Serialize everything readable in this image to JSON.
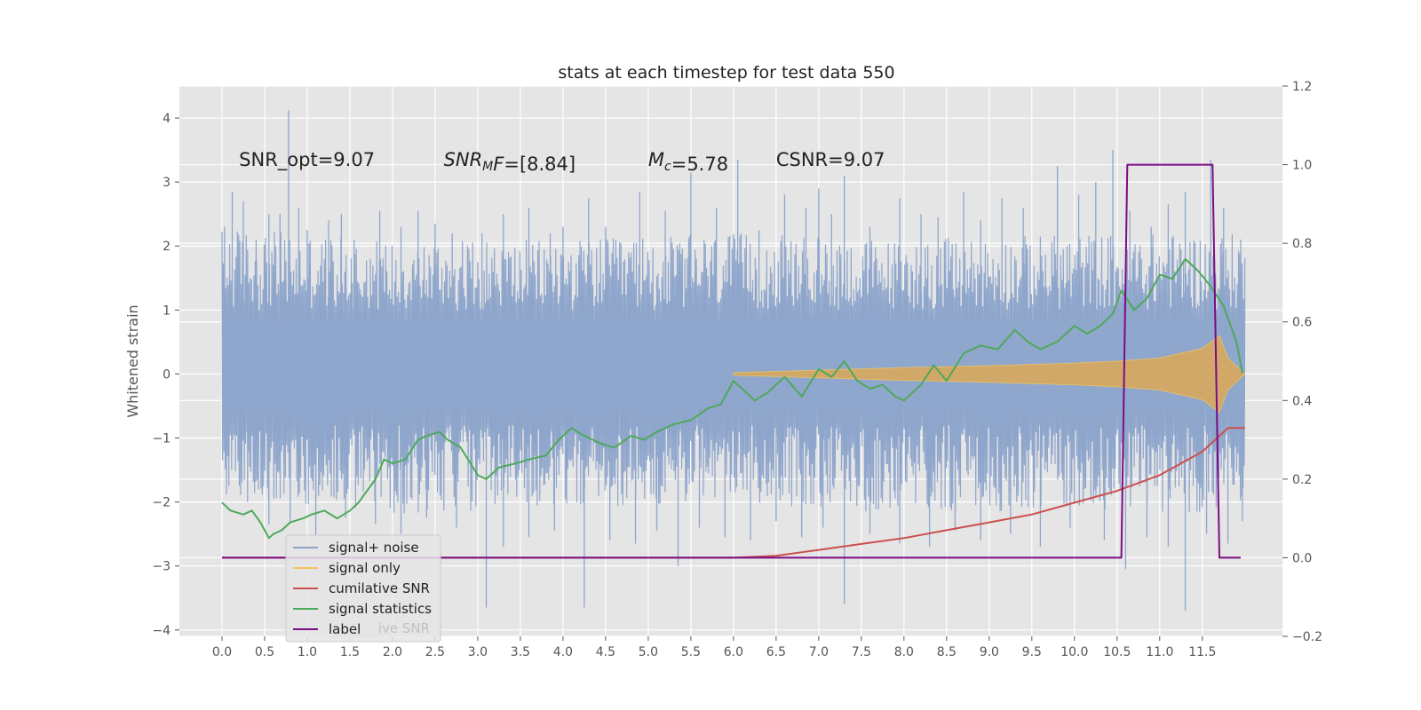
{
  "chart_data": {
    "type": "line",
    "title": "stats at each timestep for test data 550",
    "ylabel": "Whitened strain",
    "xlabel": "",
    "xlim": [
      -0.5,
      12.44
    ],
    "ylim": [
      -4.1,
      4.5
    ],
    "y2lim": [
      -0.2,
      1.2
    ],
    "grid": true,
    "background": "#e5e5e5",
    "x_ticks": [
      0.0,
      0.5,
      1.0,
      1.5,
      2.0,
      2.5,
      3.0,
      3.5,
      4.0,
      4.5,
      5.0,
      5.5,
      6.0,
      6.5,
      7.0,
      7.5,
      8.0,
      8.5,
      9.0,
      9.5,
      10.0,
      10.5,
      11.0,
      11.5
    ],
    "x_tick_labels": [
      "0.0",
      "0.5",
      "1.0",
      "1.5",
      "2.0",
      "2.5",
      "3.0",
      "3.5",
      "4.0",
      "4.5",
      "5.0",
      "5.5",
      "6.0",
      "6.5",
      "7.0",
      "7.5",
      "8.0",
      "8.5",
      "9.0",
      "9.5",
      "10.0",
      "10.5",
      "11.0",
      "11.5"
    ],
    "y_ticks": [
      -4,
      -3,
      -2,
      -1,
      0,
      1,
      2,
      3,
      4
    ],
    "y_tick_labels": [
      "−4",
      "−3",
      "−2",
      "−1",
      "0",
      "1",
      "2",
      "3",
      "4"
    ],
    "y2_ticks": [
      -0.2,
      0.0,
      0.2,
      0.4,
      0.6,
      0.8,
      1.0,
      1.2
    ],
    "y2_tick_labels": [
      "−0.2",
      "0.0",
      "0.2",
      "0.4",
      "0.6",
      "0.8",
      "1.0",
      "1.2"
    ],
    "annotations": [
      {
        "id": "snr-opt",
        "x": 0.2,
        "y": 3.25,
        "parts": [
          {
            "t": "SNR_opt=9.07"
          }
        ]
      },
      {
        "id": "snr-mf",
        "x": 2.6,
        "y": 3.25,
        "parts": [
          {
            "t": "SNR",
            "i": true
          },
          {
            "t": "M",
            "i": true,
            "sub": true
          },
          {
            "t": "F",
            "i": true
          },
          {
            "t": "=[8.84]"
          }
        ]
      },
      {
        "id": "mc",
        "x": 5.0,
        "y": 3.25,
        "parts": [
          {
            "t": "M",
            "i": true
          },
          {
            "t": "c",
            "i": true,
            "sub": true
          },
          {
            "t": "=5.78"
          }
        ]
      },
      {
        "id": "csnr",
        "x": 6.5,
        "y": 3.25,
        "parts": [
          {
            "t": "CSNR=9.07"
          }
        ]
      }
    ],
    "legend": {
      "placement": "lower-left",
      "entries": [
        {
          "label": "signal+ noise",
          "color": "#8fa6cc"
        },
        {
          "label": "signal only",
          "color": "#f4c55a"
        },
        {
          "label": "cumilative SNR",
          "color": "#cc4f4f"
        },
        {
          "label": "signal statistics",
          "color": "#4ea85a"
        },
        {
          "label": "label",
          "color": "#7b0c85"
        }
      ],
      "hidden_entry": "cumilative SNR"
    },
    "series": [
      {
        "name": "signal+ noise",
        "axis": "left",
        "color": "#8fa6cc",
        "x_range": [
          0.0,
          12.0
        ],
        "envelope": {
          "t": [
            0,
            2,
            4,
            6,
            8,
            10,
            12
          ],
          "upper": [
            2.3,
            2.1,
            2.1,
            2.2,
            2.1,
            2.2,
            2.2
          ],
          "lower": [
            -1.9,
            -2.2,
            -2.1,
            -2.0,
            -2.2,
            -2.1,
            -2.2
          ]
        },
        "spikes": [
          {
            "x": 0.03,
            "y": 2.3
          },
          {
            "x": 0.12,
            "y": 2.85
          },
          {
            "x": 0.25,
            "y": 2.7
          },
          {
            "x": 0.4,
            "y": 2.1
          },
          {
            "x": 0.55,
            "y": 2.5
          },
          {
            "x": 0.68,
            "y": 2.5
          },
          {
            "x": 0.78,
            "y": 4.12
          },
          {
            "x": 0.9,
            "y": 2.6
          },
          {
            "x": 1.0,
            "y": 2.25
          },
          {
            "x": 1.25,
            "y": 2.4
          },
          {
            "x": 1.4,
            "y": 2.5
          },
          {
            "x": 1.55,
            "y": 2.1
          },
          {
            "x": 1.85,
            "y": 2.55
          },
          {
            "x": 2.1,
            "y": 2.3
          },
          {
            "x": 2.3,
            "y": 2.55
          },
          {
            "x": 2.5,
            "y": 2.35
          },
          {
            "x": 2.7,
            "y": 2.2
          },
          {
            "x": 3.05,
            "y": 2.2
          },
          {
            "x": 3.3,
            "y": 2.5
          },
          {
            "x": 3.6,
            "y": 2.6
          },
          {
            "x": 3.85,
            "y": 2.2
          },
          {
            "x": 4.0,
            "y": 2.3
          },
          {
            "x": 4.3,
            "y": 2.75
          },
          {
            "x": 4.5,
            "y": 2.3
          },
          {
            "x": 4.9,
            "y": 2.85
          },
          {
            "x": 5.2,
            "y": 2.55
          },
          {
            "x": 5.5,
            "y": 3.15
          },
          {
            "x": 5.8,
            "y": 2.6
          },
          {
            "x": 6.05,
            "y": 3.35
          },
          {
            "x": 6.3,
            "y": 2.25
          },
          {
            "x": 6.6,
            "y": 2.8
          },
          {
            "x": 6.85,
            "y": 2.6
          },
          {
            "x": 7.0,
            "y": 2.9
          },
          {
            "x": 7.15,
            "y": 2.5
          },
          {
            "x": 7.3,
            "y": 3.1
          },
          {
            "x": 7.6,
            "y": 2.3
          },
          {
            "x": 7.95,
            "y": 2.75
          },
          {
            "x": 8.2,
            "y": 2.5
          },
          {
            "x": 8.4,
            "y": 2.45
          },
          {
            "x": 8.7,
            "y": 2.85
          },
          {
            "x": 8.9,
            "y": 2.4
          },
          {
            "x": 9.15,
            "y": 2.75
          },
          {
            "x": 9.4,
            "y": 2.6
          },
          {
            "x": 9.8,
            "y": 3.25
          },
          {
            "x": 10.05,
            "y": 2.8
          },
          {
            "x": 10.25,
            "y": 3.0
          },
          {
            "x": 10.45,
            "y": 3.5
          },
          {
            "x": 10.65,
            "y": 2.55
          },
          {
            "x": 10.9,
            "y": 2.3
          },
          {
            "x": 11.1,
            "y": 2.65
          },
          {
            "x": 11.3,
            "y": 2.85
          },
          {
            "x": 11.6,
            "y": 3.35
          },
          {
            "x": 11.75,
            "y": 2.6
          },
          {
            "x": 11.95,
            "y": 2.1
          },
          {
            "x": 0.08,
            "y": -1.75
          },
          {
            "x": 0.3,
            "y": -2.0
          },
          {
            "x": 0.55,
            "y": -2.35
          },
          {
            "x": 0.8,
            "y": -2.3
          },
          {
            "x": 1.1,
            "y": -2.55
          },
          {
            "x": 1.45,
            "y": -2.25
          },
          {
            "x": 1.8,
            "y": -2.35
          },
          {
            "x": 2.1,
            "y": -2.5
          },
          {
            "x": 2.4,
            "y": -2.25
          },
          {
            "x": 2.75,
            "y": -2.4
          },
          {
            "x": 3.1,
            "y": -3.65
          },
          {
            "x": 3.3,
            "y": -2.7
          },
          {
            "x": 3.6,
            "y": -2.55
          },
          {
            "x": 3.9,
            "y": -2.45
          },
          {
            "x": 4.25,
            "y": -3.65
          },
          {
            "x": 4.55,
            "y": -2.6
          },
          {
            "x": 4.85,
            "y": -2.65
          },
          {
            "x": 5.1,
            "y": -2.45
          },
          {
            "x": 5.35,
            "y": -3.0
          },
          {
            "x": 5.6,
            "y": -2.4
          },
          {
            "x": 5.9,
            "y": -2.55
          },
          {
            "x": 6.2,
            "y": -2.6
          },
          {
            "x": 6.5,
            "y": -2.3
          },
          {
            "x": 6.8,
            "y": -2.55
          },
          {
            "x": 7.05,
            "y": -2.4
          },
          {
            "x": 7.3,
            "y": -3.6
          },
          {
            "x": 7.6,
            "y": -2.5
          },
          {
            "x": 7.95,
            "y": -2.65
          },
          {
            "x": 8.3,
            "y": -2.7
          },
          {
            "x": 8.6,
            "y": -2.45
          },
          {
            "x": 8.9,
            "y": -2.6
          },
          {
            "x": 9.25,
            "y": -2.5
          },
          {
            "x": 9.6,
            "y": -2.7
          },
          {
            "x": 9.95,
            "y": -2.4
          },
          {
            "x": 10.35,
            "y": -2.6
          },
          {
            "x": 10.6,
            "y": -3.05
          },
          {
            "x": 10.85,
            "y": -2.55
          },
          {
            "x": 11.1,
            "y": -2.7
          },
          {
            "x": 11.3,
            "y": -3.7
          },
          {
            "x": 11.55,
            "y": -2.5
          },
          {
            "x": 11.8,
            "y": -2.65
          },
          {
            "x": 11.97,
            "y": -2.3
          }
        ]
      },
      {
        "name": "signal only",
        "axis": "left",
        "color": "#f4c55a",
        "x_range": [
          0.0,
          12.0
        ],
        "envelope": {
          "t": [
            6.0,
            7.0,
            8.0,
            9.0,
            10.0,
            10.5,
            11.0,
            11.5,
            11.7,
            11.8,
            12.0
          ],
          "amp": [
            0.02,
            0.06,
            0.1,
            0.13,
            0.17,
            0.2,
            0.25,
            0.4,
            0.6,
            0.25,
            0.0
          ]
        }
      },
      {
        "name": "cumilative SNR",
        "axis": "right",
        "color": "#cc4f4f",
        "x": [
          0.0,
          6.0,
          6.5,
          7.0,
          7.5,
          8.0,
          8.5,
          9.0,
          9.5,
          10.0,
          10.5,
          11.0,
          11.5,
          11.8,
          12.0
        ],
        "y": [
          0.0,
          0.0,
          0.005,
          0.02,
          0.035,
          0.05,
          0.07,
          0.09,
          0.11,
          0.14,
          0.17,
          0.21,
          0.27,
          0.33,
          0.33
        ]
      },
      {
        "name": "signal statistics",
        "axis": "right",
        "color": "#4ea85a",
        "x": [
          0.0,
          0.1,
          0.25,
          0.35,
          0.45,
          0.55,
          0.6,
          0.7,
          0.8,
          0.95,
          1.05,
          1.2,
          1.35,
          1.5,
          1.6,
          1.7,
          1.8,
          1.9,
          2.0,
          2.15,
          2.3,
          2.4,
          2.55,
          2.65,
          2.8,
          3.0,
          3.1,
          3.25,
          3.45,
          3.6,
          3.8,
          3.95,
          4.1,
          4.25,
          4.45,
          4.6,
          4.8,
          4.95,
          5.1,
          5.3,
          5.5,
          5.7,
          5.85,
          6.0,
          6.1,
          6.25,
          6.4,
          6.6,
          6.8,
          7.0,
          7.15,
          7.3,
          7.45,
          7.6,
          7.75,
          7.9,
          8.0,
          8.2,
          8.35,
          8.5,
          8.7,
          8.9,
          9.1,
          9.3,
          9.45,
          9.6,
          9.8,
          10.0,
          10.15,
          10.3,
          10.45,
          10.55,
          10.7,
          10.85,
          11.0,
          11.15,
          11.3,
          11.45,
          11.6,
          11.75,
          11.9,
          11.97
        ],
        "y": [
          0.14,
          0.12,
          0.11,
          0.12,
          0.09,
          0.05,
          0.06,
          0.07,
          0.09,
          0.1,
          0.11,
          0.12,
          0.1,
          0.12,
          0.14,
          0.17,
          0.2,
          0.25,
          0.24,
          0.25,
          0.3,
          0.31,
          0.32,
          0.3,
          0.28,
          0.21,
          0.2,
          0.23,
          0.24,
          0.25,
          0.26,
          0.3,
          0.33,
          0.31,
          0.29,
          0.28,
          0.31,
          0.3,
          0.32,
          0.34,
          0.35,
          0.38,
          0.39,
          0.45,
          0.43,
          0.4,
          0.42,
          0.46,
          0.41,
          0.48,
          0.46,
          0.5,
          0.45,
          0.43,
          0.44,
          0.41,
          0.4,
          0.44,
          0.49,
          0.45,
          0.52,
          0.54,
          0.53,
          0.58,
          0.55,
          0.53,
          0.55,
          0.59,
          0.57,
          0.59,
          0.62,
          0.68,
          0.63,
          0.66,
          0.72,
          0.71,
          0.76,
          0.73,
          0.69,
          0.64,
          0.55,
          0.47
        ]
      },
      {
        "name": "label",
        "axis": "right",
        "color": "#7b0c85",
        "x": [
          0.0,
          10.55,
          10.62,
          11.62,
          11.7,
          11.95
        ],
        "y": [
          0.0,
          0.0,
          1.0,
          1.0,
          0.0,
          0.0
        ]
      }
    ]
  }
}
